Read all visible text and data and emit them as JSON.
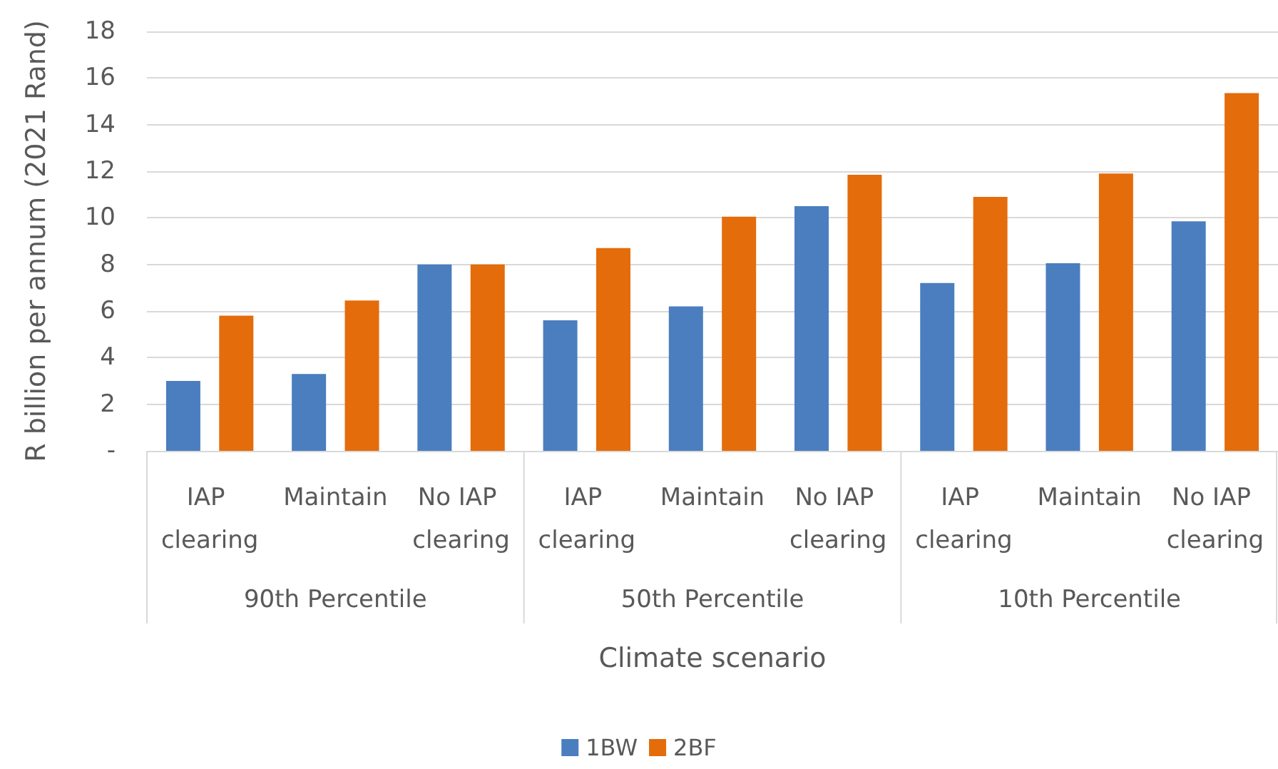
{
  "chart_data": {
    "type": "bar",
    "categories": [
      "IAP clearing",
      "Maintain",
      "No IAP clearing",
      "IAP clearing",
      "Maintain",
      "No IAP clearing",
      "IAP clearing",
      "Maintain",
      "No IAP clearing"
    ],
    "series": [
      {
        "name": "1BW",
        "color": "#4a7ebf",
        "values": [
          3.0,
          3.3,
          8.0,
          5.6,
          6.2,
          10.5,
          7.2,
          8.05,
          9.85
        ]
      },
      {
        "name": "2BF",
        "color": "#e46c0a",
        "values": [
          5.8,
          6.45,
          8.0,
          8.7,
          10.05,
          11.85,
          10.9,
          11.9,
          15.35
        ]
      }
    ],
    "annotations": [
      "90th Percentile",
      "50th Percentile",
      "10th Percentile"
    ],
    "xlabel": "Climate scenario",
    "ylabel": "R billion per annum (2021 Rand)",
    "ylim": [
      0,
      18
    ],
    "yticks": [
      {
        "value": 0,
        "label": "-"
      },
      2,
      4,
      6,
      8,
      10,
      12,
      14,
      16,
      18
    ],
    "grid": "y",
    "legend": "bottom"
  }
}
